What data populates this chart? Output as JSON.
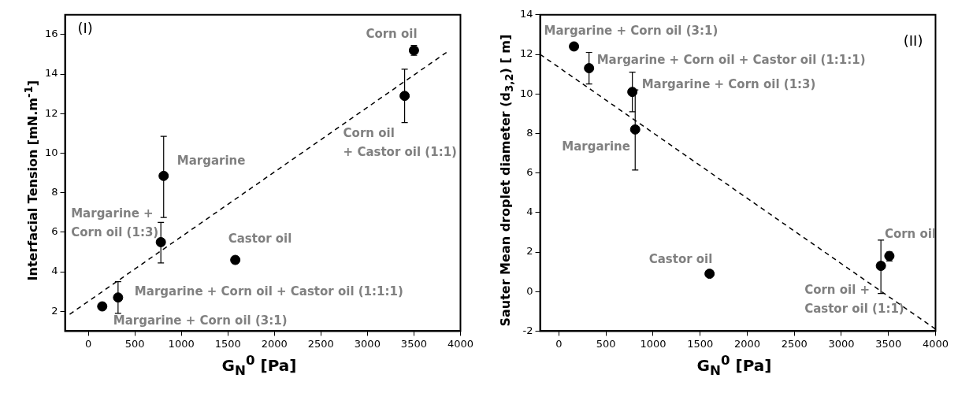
{
  "chart_data": [
    {
      "type": "scatter",
      "title": "(I)",
      "xlabel": "G$_{N}$$^{0}$ [Pa]",
      "ylabel": "Interfacial Tension [mN.m$^{-1}$]",
      "xlim": [
        -250,
        4000
      ],
      "xticks": [
        0,
        500,
        1000,
        1500,
        2000,
        2500,
        3000,
        3500,
        4000
      ],
      "ylim": [
        1,
        17
      ],
      "yticks": [
        2,
        4,
        6,
        8,
        10,
        12,
        14,
        16
      ],
      "grid": false,
      "legend": false,
      "marker": "circle",
      "series": [
        {
          "type": "scatter",
          "color": "#000000",
          "x": [
            150,
            320,
            780,
            810,
            1580,
            3400,
            3500
          ],
          "values": [
            2.25,
            2.7,
            5.5,
            8.85,
            4.6,
            12.9,
            15.2
          ],
          "errors": [
            null,
            [
              1.9,
              3.5
            ],
            [
              4.45,
              6.5
            ],
            [
              6.75,
              10.85
            ],
            null,
            [
              11.55,
              14.25
            ],
            [
              14.95,
              15.45
            ]
          ]
        },
        {
          "type": "line",
          "color": "#000000",
          "line_style": "dashed",
          "marker": "none",
          "x": [
            -200,
            3850
          ],
          "values": [
            1.85,
            15.1
          ]
        }
      ],
      "annotations": [
        {
          "text": "Corn oil",
          "x": 3500,
          "y": 15.2
        },
        {
          "text": "Corn oil\n+ Castor oil (1:1)",
          "x": 3400,
          "y": 12.9
        },
        {
          "text": "Margarine",
          "x": 810,
          "y": 8.85
        },
        {
          "text": "Margarine +\nCorn oil (1:3)",
          "x": 780,
          "y": 5.5
        },
        {
          "text": "Castor oil",
          "x": 1580,
          "y": 4.6
        },
        {
          "text": "Margarine + Corn oil + Castor oil (1:1:1)",
          "x": 320,
          "y": 2.7
        },
        {
          "text": "Margarine + Corn oil (3:1)",
          "x": 150,
          "y": 2.25
        }
      ]
    },
    {
      "type": "scatter",
      "title": "(II)",
      "xlabel": "G$_{N}$$^{0}$ [Pa]",
      "ylabel": "Sauter Mean droplet diameter (d$_{3,2}$) [ m]",
      "xlim": [
        -200,
        4000
      ],
      "xticks": [
        0,
        500,
        1000,
        1500,
        2000,
        2500,
        3000,
        3500,
        4000
      ],
      "ylim": [
        -2,
        14
      ],
      "yticks": [
        -2,
        0,
        2,
        4,
        6,
        8,
        10,
        12,
        14
      ],
      "grid": false,
      "legend": false,
      "marker": "circle",
      "series": [
        {
          "type": "scatter",
          "color": "#000000",
          "x": [
            160,
            320,
            780,
            810,
            1600,
            3420,
            3510
          ],
          "values": [
            12.4,
            11.3,
            10.1,
            8.2,
            0.9,
            1.3,
            1.8
          ],
          "errors": [
            null,
            [
              10.5,
              12.1
            ],
            [
              9.1,
              11.1
            ],
            [
              6.15,
              10.2
            ],
            null,
            [
              -0.1,
              2.6
            ],
            [
              1.55,
              2.0
            ]
          ]
        },
        {
          "type": "line",
          "color": "#000000",
          "line_style": "dashed",
          "marker": "none",
          "x": [
            -200,
            4000
          ],
          "values": [
            12.0,
            -1.9
          ]
        }
      ],
      "annotations": [
        {
          "text": "Margarine + Corn oil (3:1)",
          "x": 160,
          "y": 12.4
        },
        {
          "text": "Margarine + Corn oil + Castor oil (1:1:1)",
          "x": 320,
          "y": 11.3
        },
        {
          "text": "Margarine + Corn oil (1:3)",
          "x": 780,
          "y": 10.1
        },
        {
          "text": "Margarine",
          "x": 810,
          "y": 8.2
        },
        {
          "text": "Castor oil",
          "x": 1600,
          "y": 0.9
        },
        {
          "text": "Corn oil",
          "x": 3510,
          "y": 1.8
        },
        {
          "text": "Corn oil +\nCastor oil (1:1)",
          "x": 3420,
          "y": 1.3
        }
      ]
    }
  ]
}
